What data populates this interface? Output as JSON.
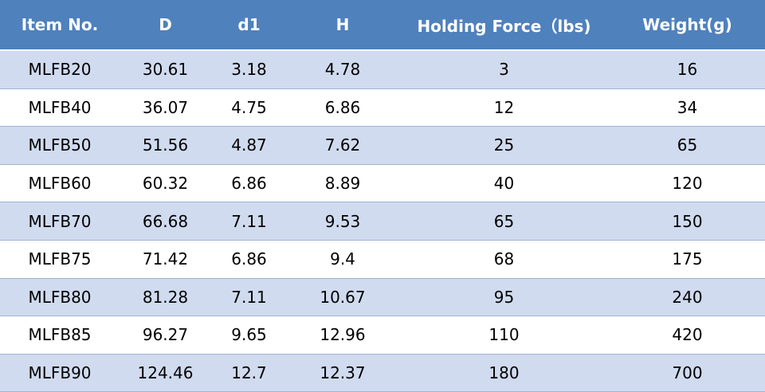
{
  "table": {
    "header": [
      "Item No.",
      "D",
      "d1",
      "H",
      "Holding Force（lbs)",
      "Weight(g)"
    ],
    "rows": [
      [
        "MLFB20",
        "30.61",
        "3.18",
        "4.78",
        "3",
        "16"
      ],
      [
        "MLFB40",
        "36.07",
        "4.75",
        "6.86",
        "12",
        "34"
      ],
      [
        "MLFB50",
        "51.56",
        "4.87",
        "7.62",
        "25",
        "65"
      ],
      [
        "MLFB60",
        "60.32",
        "6.86",
        "8.89",
        "40",
        "120"
      ],
      [
        "MLFB70",
        "66.68",
        "7.11",
        "9.53",
        "65",
        "150"
      ],
      [
        "MLFB75",
        "71.42",
        "6.86",
        "9.4",
        "68",
        "175"
      ],
      [
        "MLFB80",
        "81.28",
        "7.11",
        "10.67",
        "95",
        "240"
      ],
      [
        "MLFB85",
        "96.27",
        "9.65",
        "12.96",
        "110",
        "420"
      ],
      [
        "MLFB90",
        "124.46",
        "12.7",
        "12.37",
        "180",
        "700"
      ]
    ]
  }
}
